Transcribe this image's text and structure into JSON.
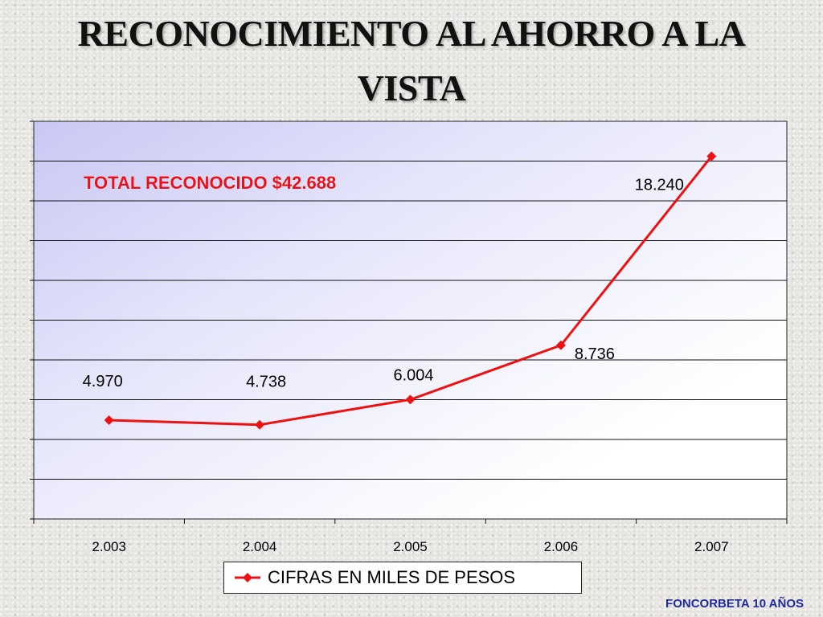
{
  "slide": {
    "title": "RECONOCIMIENTO AL AHORRO A LA VISTA",
    "footer": "FONCORBETA 10 AÑOS"
  },
  "chart_data": {
    "type": "line",
    "title": "",
    "xlabel": "",
    "ylabel": "",
    "categories": [
      "2.003",
      "2.004",
      "2.005",
      "2.006",
      "2.007"
    ],
    "series": [
      {
        "name": "CIFRAS EN MILES DE PESOS",
        "values": [
          4970,
          4738,
          6004,
          8736,
          18240
        ],
        "labels": [
          "4.970",
          "4.738",
          "6.004",
          "8.736",
          "18.240"
        ],
        "color": "#ee1111",
        "marker": "diamond"
      }
    ],
    "annotation": "TOTAL RECONOCIDO $42.688",
    "annotation_color": "#e8111b",
    "ylim": [
      0,
      20000
    ],
    "y_major_step": 2000,
    "grid": true,
    "legend": "bottom",
    "y_tick_labels_visible": false
  }
}
